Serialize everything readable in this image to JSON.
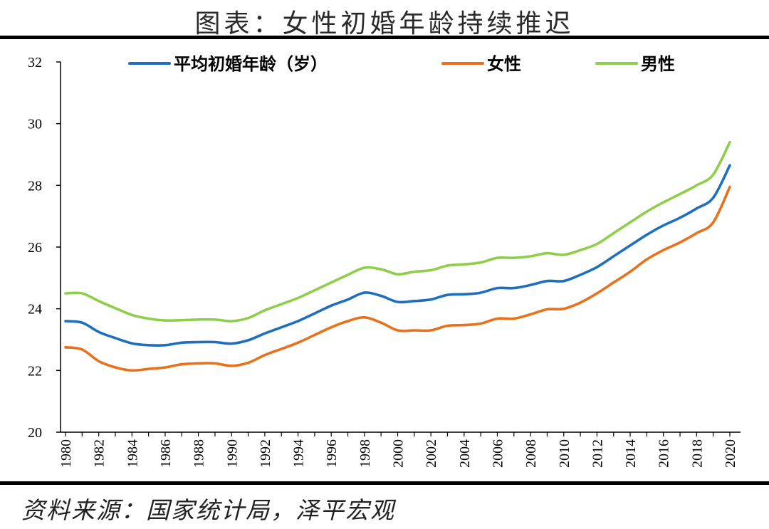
{
  "title": "图表：女性初婚年龄持续推迟",
  "source": "资料来源：国家统计局，泽平宏观",
  "colors": {
    "average": "#1f6fbf",
    "female": "#e8711c",
    "male": "#8fce4a"
  },
  "chart_data": {
    "type": "line",
    "title": "图表：女性初婚年龄持续推迟",
    "xlabel": "",
    "ylabel": "",
    "ylim": [
      20,
      32
    ],
    "yticks": [
      "20",
      "22",
      "24",
      "26",
      "28",
      "30",
      "32"
    ],
    "xticks": [
      "1980",
      "1982",
      "1984",
      "1986",
      "1988",
      "1990",
      "1992",
      "1994",
      "1996",
      "1998",
      "2000",
      "2002",
      "2004",
      "2006",
      "2008",
      "2010",
      "2012",
      "2014",
      "2016",
      "2018",
      "2020"
    ],
    "grid": false,
    "legend_position": "top",
    "x": [
      1980,
      1981,
      1982,
      1983,
      1984,
      1985,
      1986,
      1987,
      1988,
      1989,
      1990,
      1991,
      1992,
      1993,
      1994,
      1995,
      1996,
      1997,
      1998,
      1999,
      2000,
      2001,
      2002,
      2003,
      2004,
      2005,
      2006,
      2007,
      2008,
      2009,
      2010,
      2011,
      2012,
      2013,
      2014,
      2015,
      2016,
      2017,
      2018,
      2019,
      2020
    ],
    "series": [
      {
        "name": "平均初婚年龄（岁）",
        "color": "#1f6fbf",
        "values": [
          23.6,
          23.55,
          23.25,
          23.05,
          22.88,
          22.82,
          22.82,
          22.9,
          22.92,
          22.92,
          22.87,
          22.98,
          23.2,
          23.4,
          23.6,
          23.85,
          24.1,
          24.3,
          24.52,
          24.42,
          24.22,
          24.25,
          24.3,
          24.45,
          24.47,
          24.52,
          24.67,
          24.67,
          24.77,
          24.9,
          24.9,
          25.1,
          25.35,
          25.7,
          26.05,
          26.4,
          26.7,
          26.95,
          27.25,
          27.6,
          28.65
        ]
      },
      {
        "name": "女性",
        "color": "#e8711c",
        "values": [
          22.75,
          22.68,
          22.3,
          22.1,
          22.0,
          22.05,
          22.1,
          22.2,
          22.23,
          22.23,
          22.15,
          22.25,
          22.5,
          22.7,
          22.9,
          23.15,
          23.4,
          23.6,
          23.72,
          23.55,
          23.3,
          23.3,
          23.3,
          23.45,
          23.47,
          23.52,
          23.68,
          23.68,
          23.82,
          23.98,
          24.0,
          24.2,
          24.5,
          24.85,
          25.2,
          25.6,
          25.9,
          26.15,
          26.45,
          26.8,
          27.95
        ]
      },
      {
        "name": "男性",
        "color": "#8fce4a",
        "values": [
          24.5,
          24.5,
          24.25,
          24.02,
          23.8,
          23.68,
          23.62,
          23.63,
          23.65,
          23.65,
          23.6,
          23.7,
          23.95,
          24.15,
          24.35,
          24.6,
          24.85,
          25.1,
          25.33,
          25.28,
          25.12,
          25.2,
          25.25,
          25.4,
          25.44,
          25.5,
          25.65,
          25.65,
          25.7,
          25.8,
          25.75,
          25.9,
          26.1,
          26.45,
          26.8,
          27.15,
          27.45,
          27.72,
          28.0,
          28.35,
          29.4
        ]
      }
    ]
  }
}
